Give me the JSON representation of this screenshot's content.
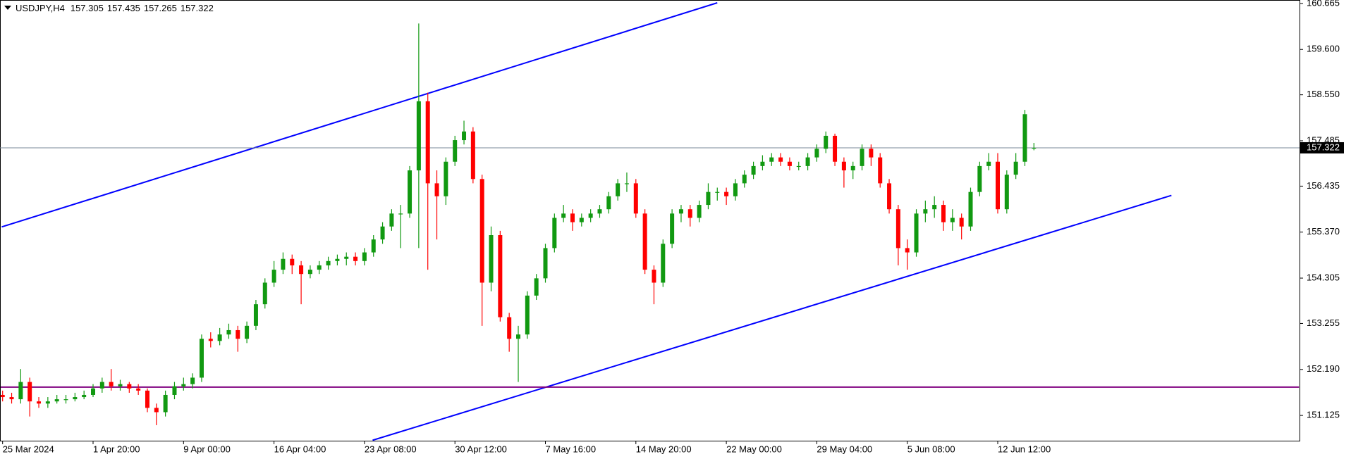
{
  "chart_data": {
    "type": "candlestick",
    "symbol": "USDJPY,H4",
    "header_ohlc": [
      157.305,
      157.435,
      157.265,
      157.322
    ],
    "last_price": 157.322,
    "up_color": "#119911",
    "down_color": "#ff0000",
    "price_line_color": "#7a8a99",
    "ylim": [
      150.54,
      160.745
    ],
    "yticks": [
      160.665,
      {
        "value": 159.6,
        "label": "159.600"
      },
      {
        "value": 158.55,
        "label": "158.550"
      },
      157.485,
      156.435,
      {
        "value": 155.37,
        "label": "155.370"
      },
      154.305,
      153.255,
      {
        "value": 152.19,
        "label": "152.190"
      },
      151.125
    ],
    "categories": [
      "25 Mar 2024",
      null,
      null,
      null,
      null,
      null,
      null,
      null,
      null,
      null,
      "1 Apr 20:00",
      null,
      null,
      null,
      null,
      null,
      null,
      null,
      null,
      null,
      "9 Apr 00:00",
      null,
      null,
      null,
      null,
      null,
      null,
      null,
      null,
      null,
      "16 Apr 04:00",
      null,
      null,
      null,
      null,
      null,
      null,
      null,
      null,
      null,
      "23 Apr 08:00",
      null,
      null,
      null,
      null,
      null,
      null,
      null,
      null,
      null,
      "30 Apr 12:00",
      null,
      null,
      null,
      null,
      null,
      null,
      null,
      null,
      null,
      "7 May 16:00",
      null,
      null,
      null,
      null,
      null,
      null,
      null,
      null,
      null,
      "14 May 20:00",
      null,
      null,
      null,
      null,
      null,
      null,
      null,
      null,
      null,
      "22 May 00:00",
      null,
      null,
      null,
      null,
      null,
      null,
      null,
      null,
      null,
      "29 May 04:00",
      null,
      null,
      null,
      null,
      null,
      null,
      null,
      null,
      null,
      "5 Jun 08:00",
      null,
      null,
      null,
      null,
      null,
      null,
      null,
      null,
      null,
      "12 Jun 12:00",
      null,
      null,
      null,
      null
    ],
    "ohlc": [
      [
        151.6,
        151.7,
        151.45,
        151.55
      ],
      [
        151.55,
        151.65,
        151.4,
        151.5
      ],
      [
        151.5,
        152.2,
        151.4,
        151.9
      ],
      [
        151.9,
        152.0,
        151.1,
        151.45
      ],
      [
        151.45,
        151.55,
        151.3,
        151.4
      ],
      [
        151.4,
        151.55,
        151.3,
        151.45
      ],
      [
        151.45,
        151.6,
        151.4,
        151.5
      ],
      [
        151.5,
        151.6,
        151.4,
        151.5
      ],
      [
        151.5,
        151.65,
        151.45,
        151.55
      ],
      [
        151.55,
        151.7,
        151.5,
        151.6
      ],
      [
        151.6,
        151.85,
        151.55,
        151.75
      ],
      [
        151.75,
        152.0,
        151.65,
        151.9
      ],
      [
        151.9,
        152.2,
        151.7,
        151.8
      ],
      [
        151.8,
        151.95,
        151.7,
        151.85
      ],
      [
        151.85,
        151.9,
        151.65,
        151.75
      ],
      [
        151.75,
        151.85,
        151.6,
        151.7
      ],
      [
        151.7,
        151.75,
        151.2,
        151.3
      ],
      [
        151.3,
        151.4,
        150.9,
        151.2
      ],
      [
        151.2,
        151.7,
        151.1,
        151.6
      ],
      [
        151.6,
        151.9,
        151.5,
        151.8
      ],
      [
        151.8,
        152.0,
        151.7,
        151.85
      ],
      [
        151.85,
        152.1,
        151.75,
        152.0
      ],
      [
        152.0,
        153.0,
        151.9,
        152.9
      ],
      [
        152.9,
        153.05,
        152.7,
        152.85
      ],
      [
        152.85,
        153.15,
        152.75,
        153.0
      ],
      [
        153.0,
        153.25,
        152.9,
        153.1
      ],
      [
        153.1,
        153.2,
        152.6,
        152.9
      ],
      [
        152.9,
        153.3,
        152.8,
        153.2
      ],
      [
        153.2,
        153.8,
        153.1,
        153.7
      ],
      [
        153.7,
        154.3,
        153.6,
        154.2
      ],
      [
        154.2,
        154.7,
        154.1,
        154.5
      ],
      [
        154.5,
        154.9,
        154.4,
        154.75
      ],
      [
        154.75,
        154.85,
        154.4,
        154.6
      ],
      [
        154.6,
        154.7,
        153.7,
        154.4
      ],
      [
        154.4,
        154.6,
        154.3,
        154.5
      ],
      [
        154.5,
        154.7,
        154.4,
        154.6
      ],
      [
        154.6,
        154.8,
        154.5,
        154.7
      ],
      [
        154.7,
        154.85,
        154.6,
        154.75
      ],
      [
        154.75,
        154.9,
        154.6,
        154.8
      ],
      [
        154.8,
        154.9,
        154.6,
        154.7
      ],
      [
        154.7,
        155.0,
        154.6,
        154.9
      ],
      [
        154.9,
        155.3,
        154.8,
        155.2
      ],
      [
        155.2,
        155.6,
        155.1,
        155.5
      ],
      [
        155.5,
        155.9,
        155.4,
        155.8
      ],
      [
        155.8,
        156.0,
        155.0,
        155.8
      ],
      [
        155.8,
        156.9,
        155.7,
        156.8
      ],
      [
        156.8,
        160.2,
        155.0,
        158.4
      ],
      [
        158.4,
        158.6,
        154.5,
        156.5
      ],
      [
        156.5,
        156.8,
        155.2,
        156.2
      ],
      [
        156.2,
        157.1,
        156.0,
        157.0
      ],
      [
        157.0,
        157.6,
        156.9,
        157.5
      ],
      [
        157.5,
        157.95,
        157.4,
        157.7
      ],
      [
        157.7,
        157.8,
        156.5,
        156.6
      ],
      [
        156.6,
        156.7,
        153.2,
        154.2
      ],
      [
        154.2,
        155.5,
        154.0,
        155.3
      ],
      [
        155.3,
        155.4,
        153.3,
        153.4
      ],
      [
        153.4,
        153.5,
        152.6,
        152.9
      ],
      [
        152.9,
        153.2,
        151.9,
        153.0
      ],
      [
        153.0,
        154.0,
        152.9,
        153.9
      ],
      [
        153.9,
        154.4,
        153.8,
        154.3
      ],
      [
        154.3,
        155.1,
        154.2,
        155.0
      ],
      [
        155.0,
        155.8,
        154.9,
        155.7
      ],
      [
        155.7,
        156.0,
        155.6,
        155.8
      ],
      [
        155.8,
        155.9,
        155.4,
        155.6
      ],
      [
        155.6,
        155.8,
        155.5,
        155.7
      ],
      [
        155.7,
        155.9,
        155.6,
        155.8
      ],
      [
        155.8,
        156.0,
        155.7,
        155.9
      ],
      [
        155.9,
        156.3,
        155.8,
        156.2
      ],
      [
        156.2,
        156.6,
        156.1,
        156.5
      ],
      [
        156.5,
        156.75,
        156.3,
        156.5
      ],
      [
        156.5,
        156.6,
        155.7,
        155.8
      ],
      [
        155.8,
        155.9,
        154.4,
        154.5
      ],
      [
        154.5,
        154.6,
        153.7,
        154.2
      ],
      [
        154.2,
        155.2,
        154.1,
        155.1
      ],
      [
        155.1,
        155.9,
        155.0,
        155.8
      ],
      [
        155.8,
        156.0,
        155.6,
        155.9
      ],
      [
        155.9,
        156.0,
        155.5,
        155.7
      ],
      [
        155.7,
        156.1,
        155.6,
        156.0
      ],
      [
        156.0,
        156.5,
        155.9,
        156.3
      ],
      [
        156.3,
        156.4,
        156.1,
        156.3
      ],
      [
        156.3,
        156.4,
        156.0,
        156.2
      ],
      [
        156.2,
        156.6,
        156.1,
        156.5
      ],
      [
        156.5,
        156.8,
        156.4,
        156.7
      ],
      [
        156.7,
        157.0,
        156.6,
        156.9
      ],
      [
        156.9,
        157.15,
        156.8,
        157.0
      ],
      [
        157.0,
        157.2,
        156.9,
        157.1
      ],
      [
        157.1,
        157.2,
        156.9,
        157.0
      ],
      [
        157.0,
        157.1,
        156.8,
        156.9
      ],
      [
        156.9,
        157.0,
        156.8,
        156.9
      ],
      [
        156.9,
        157.2,
        156.8,
        157.1
      ],
      [
        157.1,
        157.4,
        157.0,
        157.3
      ],
      [
        157.3,
        157.7,
        157.2,
        157.6
      ],
      [
        157.6,
        157.65,
        156.9,
        157.0
      ],
      [
        157.0,
        157.1,
        156.4,
        156.8
      ],
      [
        156.8,
        157.0,
        156.6,
        156.9
      ],
      [
        156.9,
        157.4,
        156.8,
        157.3
      ],
      [
        157.3,
        157.4,
        156.9,
        157.1
      ],
      [
        157.1,
        157.2,
        156.4,
        156.5
      ],
      [
        156.5,
        156.6,
        155.8,
        155.9
      ],
      [
        155.9,
        156.0,
        154.6,
        155.0
      ],
      [
        155.0,
        155.2,
        154.5,
        154.9
      ],
      [
        154.9,
        155.9,
        154.8,
        155.8
      ],
      [
        155.8,
        156.1,
        155.6,
        155.9
      ],
      [
        155.9,
        156.2,
        155.7,
        156.0
      ],
      [
        156.0,
        156.1,
        155.4,
        155.6
      ],
      [
        155.6,
        155.9,
        155.4,
        155.7
      ],
      [
        155.7,
        155.8,
        155.2,
        155.5
      ],
      [
        155.5,
        156.4,
        155.4,
        156.3
      ],
      [
        156.3,
        157.0,
        156.2,
        156.9
      ],
      [
        156.9,
        157.2,
        156.8,
        157.0
      ],
      [
        157.0,
        157.2,
        155.8,
        155.9
      ],
      [
        155.9,
        156.8,
        155.8,
        156.7
      ],
      [
        156.7,
        157.2,
        156.6,
        157.0
      ],
      [
        157.0,
        158.2,
        156.9,
        158.1
      ],
      [
        157.305,
        157.435,
        157.265,
        157.322
      ]
    ],
    "lines": [
      {
        "x": [
          -0.1,
          79.0
        ],
        "y": [
          155.49,
          160.68
        ],
        "color": "#0000ff"
      },
      {
        "x": [
          40.9,
          129.2
        ],
        "y": [
          150.55,
          156.22
        ],
        "color": "#0000ff"
      },
      {
        "x": [
          -0.3,
          143.3
        ],
        "y": [
          151.78,
          151.78
        ],
        "color": "#800080"
      }
    ]
  }
}
